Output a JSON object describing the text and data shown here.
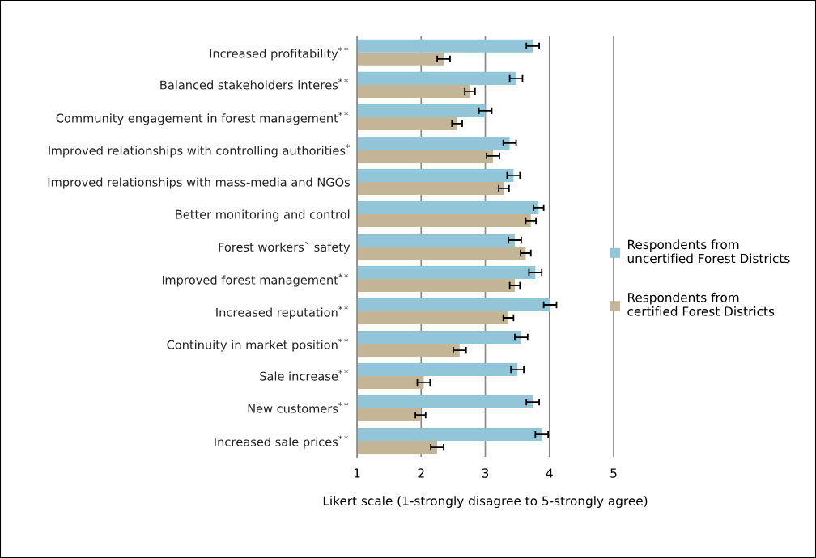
{
  "chart_data": {
    "type": "bar",
    "orientation": "horizontal",
    "categories": [
      "Increased profitability$^{**}$",
      "Balanced stakeholders interes$^{**}$",
      "Community engagement in forest management$^{**}$",
      "Improved relationships with controlling authorities$^{*}$",
      "Improved relationships with mass-media and NGOs",
      "Better monitoring and control",
      "Forest workers` safety",
      "Improved forest management$^{**}$",
      "Increased reputation$^{**}$",
      "Continuity in market position$^{**}$",
      "Sale increase$^{**}$",
      "New customers$^{**}$",
      "Increased sale prices$^{**}$"
    ],
    "series": [
      {
        "name": "Respondents from\nuncertified Forest Districts",
        "color": "#92c5d8",
        "values": [
          3.74,
          3.48,
          3.0,
          3.38,
          3.44,
          3.83,
          3.46,
          3.78,
          4.01,
          3.56,
          3.5,
          3.74,
          3.88
        ],
        "errors": [
          0.1,
          0.1,
          0.1,
          0.1,
          0.1,
          0.08,
          0.1,
          0.1,
          0.1,
          0.1,
          0.1,
          0.1,
          0.1
        ]
      },
      {
        "name": "Respondents from\ncertified Forest Districts",
        "color": "#c4b596",
        "values": [
          2.35,
          2.76,
          2.56,
          3.12,
          3.29,
          3.71,
          3.63,
          3.46,
          3.36,
          2.6,
          2.04,
          1.99,
          2.25
        ],
        "errors": [
          0.1,
          0.08,
          0.08,
          0.1,
          0.08,
          0.08,
          0.08,
          0.08,
          0.08,
          0.1,
          0.1,
          0.08,
          0.1
        ]
      }
    ],
    "xlabel": "Likert scale (1-strongly disagree to 5-strongly agree)",
    "xlim": [
      1,
      5
    ],
    "xticks": [
      1,
      2,
      3,
      4,
      5
    ],
    "grid": "x",
    "legend": "right"
  }
}
